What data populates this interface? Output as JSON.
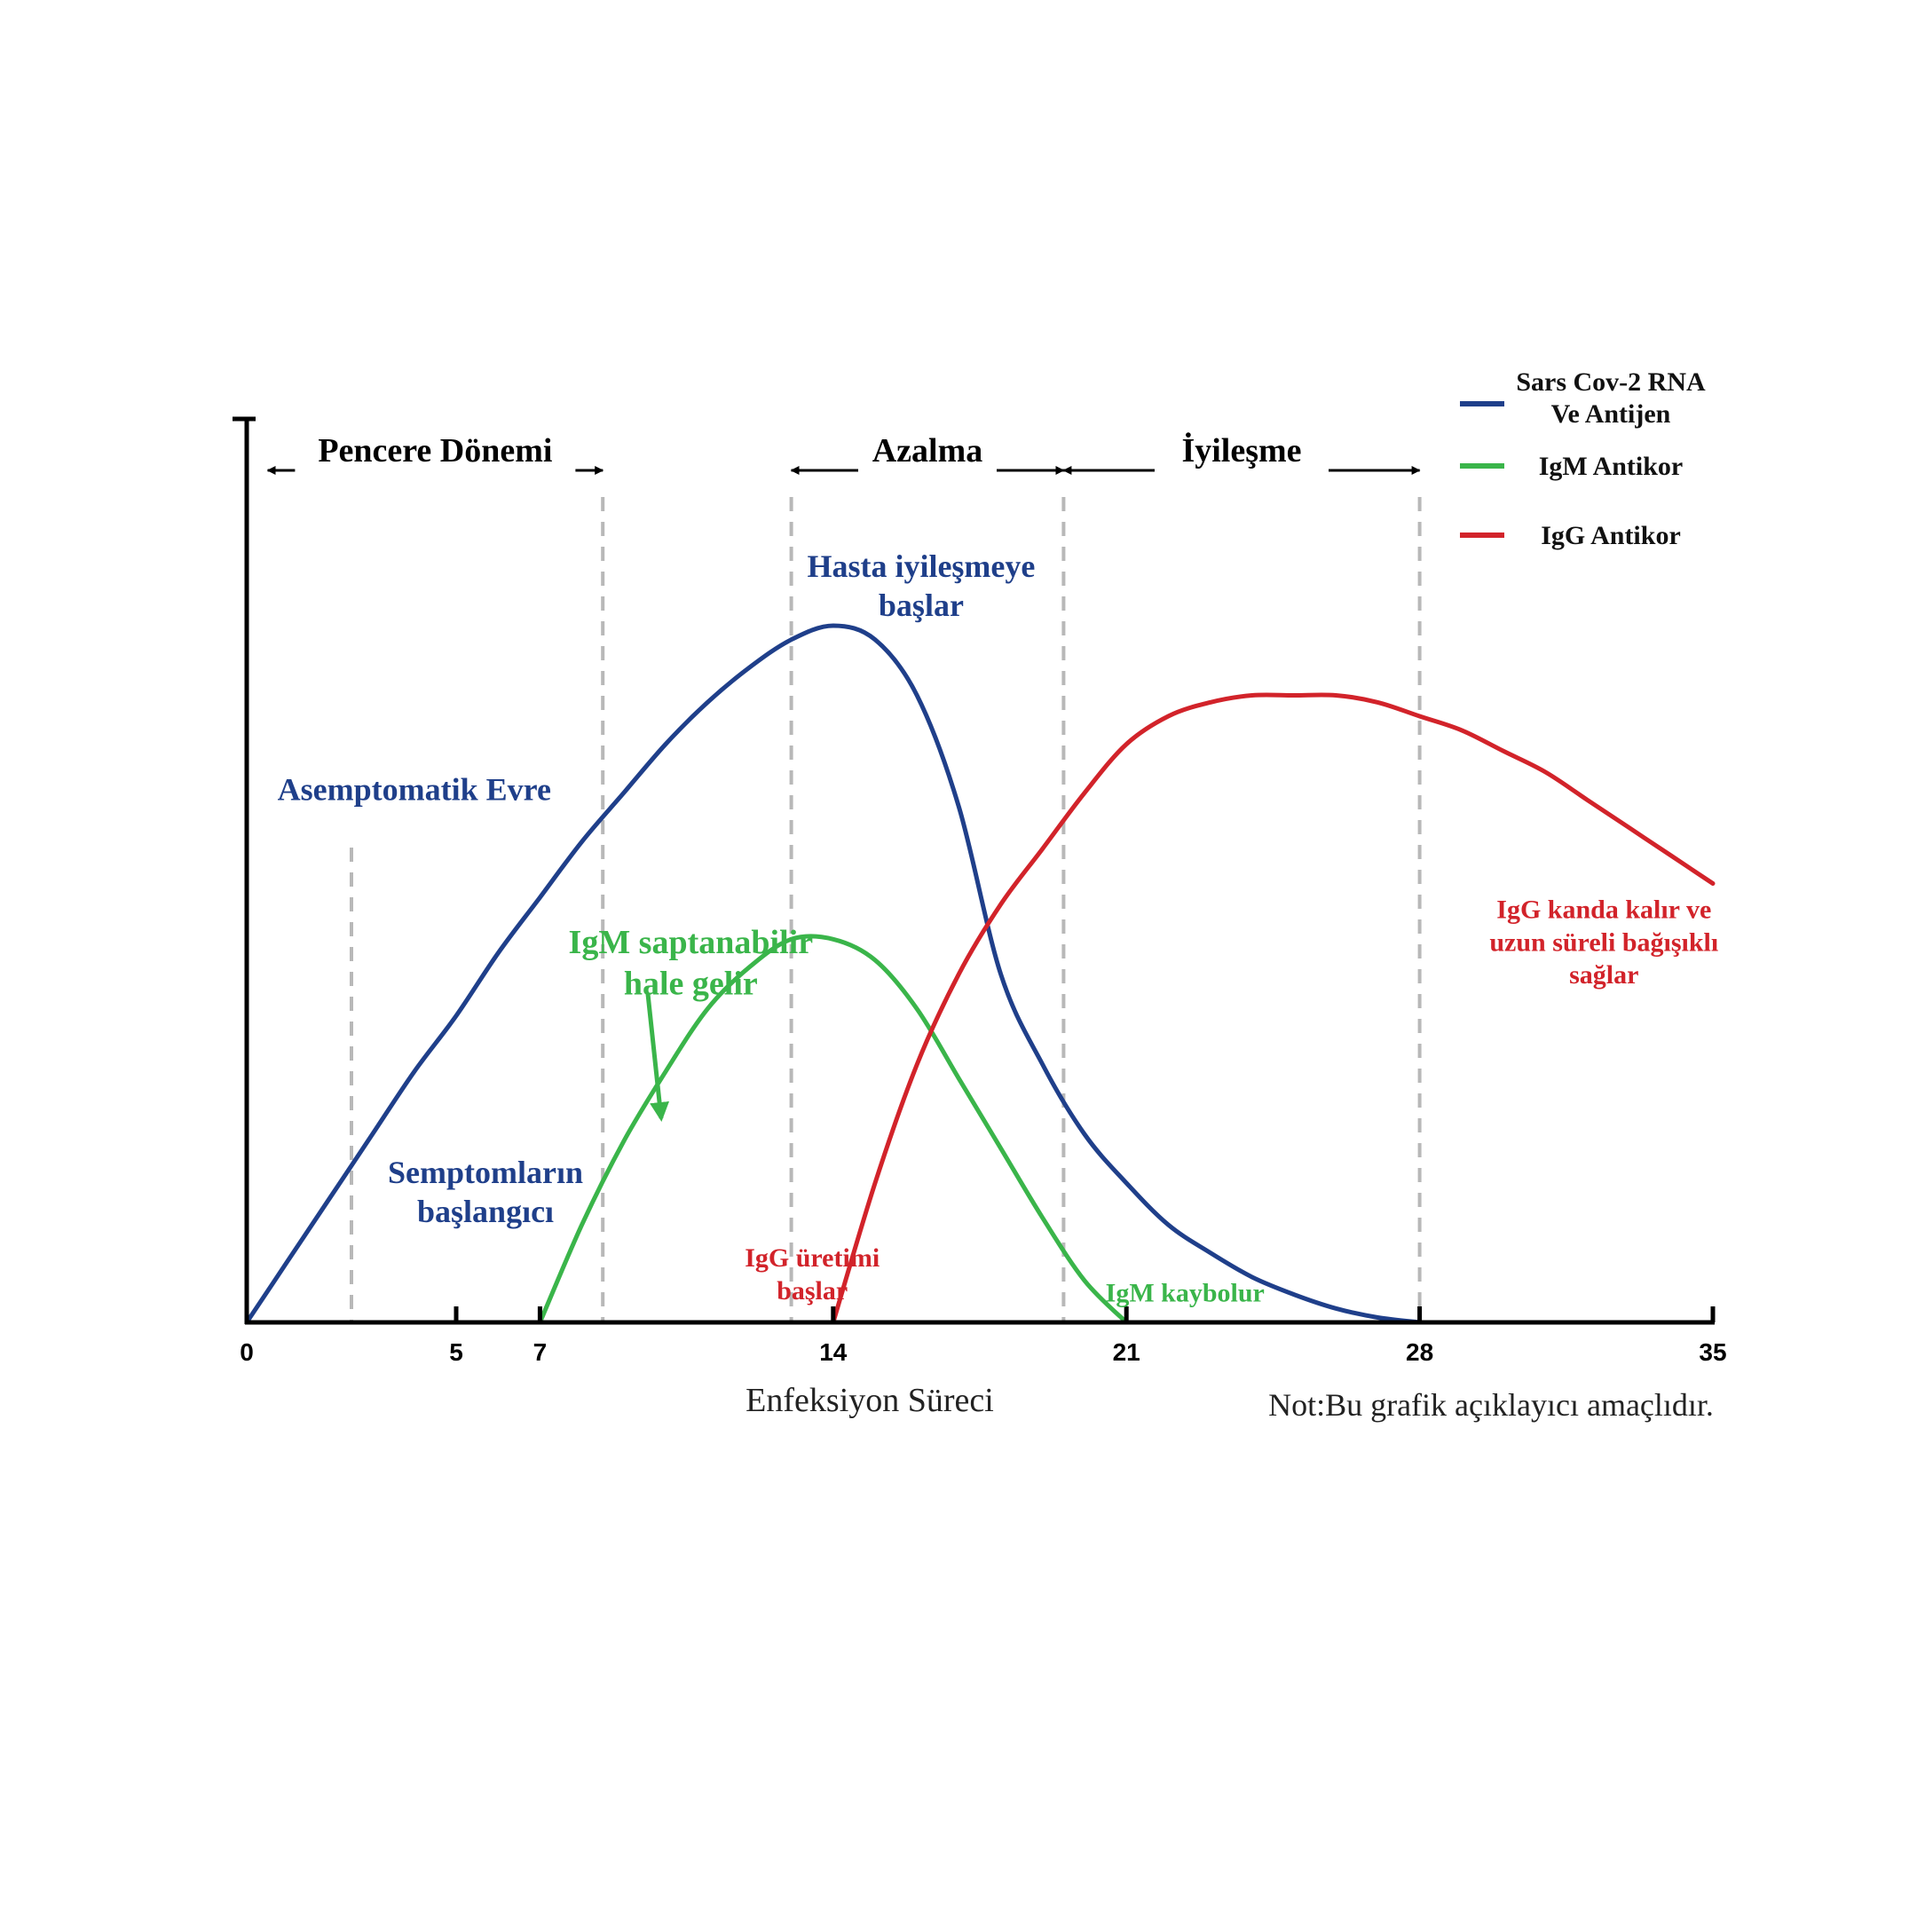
{
  "chart_data": {
    "type": "line",
    "xlabel": "Enfeksiyon Süreci",
    "note": "Not:Bu grafik açıklayıcı amaçlıdır.",
    "x_ticks": [
      0,
      5,
      7,
      14,
      21,
      28,
      35
    ],
    "xlim": [
      0,
      35
    ],
    "ylim": [
      0,
      1
    ],
    "legend_position": "top-right",
    "colors": {
      "blue": "#1f3f8a",
      "green": "#3ab54a",
      "red": "#d2232a",
      "phase_line": "#b8b8b8"
    },
    "series": [
      {
        "name": "Sars Cov-2 RNA Ve Antijen",
        "legend_lines": [
          "Sars Cov-2 RNA",
          "Ve Antijen"
        ],
        "color": "#1f3f8a",
        "points": [
          [
            0,
            0
          ],
          [
            1,
            0.09
          ],
          [
            2,
            0.18
          ],
          [
            3,
            0.27
          ],
          [
            4,
            0.36
          ],
          [
            5,
            0.44
          ],
          [
            6,
            0.53
          ],
          [
            7,
            0.61
          ],
          [
            8,
            0.69
          ],
          [
            9,
            0.76
          ],
          [
            10,
            0.83
          ],
          [
            11,
            0.89
          ],
          [
            12,
            0.94
          ],
          [
            13,
            0.98
          ],
          [
            14,
            1.0
          ],
          [
            15,
            0.98
          ],
          [
            16,
            0.9
          ],
          [
            17,
            0.74
          ],
          [
            18,
            0.5
          ],
          [
            19,
            0.37
          ],
          [
            20,
            0.27
          ],
          [
            21,
            0.2
          ],
          [
            22,
            0.14
          ],
          [
            23,
            0.1
          ],
          [
            24,
            0.065
          ],
          [
            25,
            0.04
          ],
          [
            26,
            0.02
          ],
          [
            27,
            0.007
          ],
          [
            28,
            0.0
          ]
        ]
      },
      {
        "name": "IgM Antikor",
        "legend_lines": [
          "IgM Antikor"
        ],
        "color": "#3ab54a",
        "points": [
          [
            7,
            0
          ],
          [
            8,
            0.14
          ],
          [
            9,
            0.26
          ],
          [
            10,
            0.36
          ],
          [
            11,
            0.45
          ],
          [
            12,
            0.51
          ],
          [
            13,
            0.55
          ],
          [
            14,
            0.55
          ],
          [
            15,
            0.52
          ],
          [
            16,
            0.45
          ],
          [
            17,
            0.35
          ],
          [
            18,
            0.25
          ],
          [
            19,
            0.15
          ],
          [
            20,
            0.06
          ],
          [
            21,
            0.0
          ]
        ]
      },
      {
        "name": "IgG Antikor",
        "legend_lines": [
          "IgG Antikor"
        ],
        "color": "#d2232a",
        "points": [
          [
            14,
            0
          ],
          [
            15,
            0.2
          ],
          [
            16,
            0.37
          ],
          [
            17,
            0.5
          ],
          [
            18,
            0.6
          ],
          [
            19,
            0.68
          ],
          [
            20,
            0.76
          ],
          [
            21,
            0.83
          ],
          [
            22,
            0.87
          ],
          [
            23,
            0.89
          ],
          [
            24,
            0.9
          ],
          [
            25,
            0.9
          ],
          [
            26,
            0.9
          ],
          [
            27,
            0.89
          ],
          [
            28,
            0.87
          ],
          [
            29,
            0.85
          ],
          [
            30,
            0.82
          ],
          [
            31,
            0.79
          ],
          [
            32,
            0.75
          ],
          [
            33,
            0.71
          ],
          [
            34,
            0.67
          ],
          [
            35,
            0.63
          ]
        ]
      }
    ],
    "phase_lines_x": [
      2.5,
      4.1,
      8.5,
      13.0,
      19.5,
      28.0
    ],
    "phases": [
      {
        "label": "Pencere Dönemi",
        "from": 0.5,
        "to": 8.5
      },
      {
        "label": "Azalma",
        "from": 13.0,
        "to": 19.5
      },
      {
        "label": "İyileşme",
        "from": 19.5,
        "to": 28.0
      }
    ],
    "annotations": [
      {
        "id": "asemptomatik",
        "lines": [
          "Asemptomatik Evre"
        ],
        "color": "#1f3f8a",
        "x": 4.0,
        "y": 0.75
      },
      {
        "id": "semptom",
        "lines": [
          "Semptomların",
          "başlangıcı"
        ],
        "color": "#1f3f8a",
        "x": 5.7,
        "y": 0.2
      },
      {
        "id": "hasta",
        "lines": [
          "Hasta iyileşmeye",
          "başlar"
        ],
        "color": "#1f3f8a",
        "x": 16.1,
        "y": 1.07
      },
      {
        "id": "igm-detect",
        "lines": [
          "IgM saptanabilir",
          "hale gelir"
        ],
        "color": "#3ab54a",
        "x": 10.6,
        "y": 0.53
      },
      {
        "id": "igg-start",
        "lines": [
          "IgG üretimi",
          "başlar"
        ],
        "color": "#d2232a",
        "x": 13.5,
        "y": 0.08
      },
      {
        "id": "igm-lost",
        "lines": [
          "IgM kaybolur"
        ],
        "color": "#3ab54a",
        "x": 22.4,
        "y": 0.03
      },
      {
        "id": "igg-remain",
        "lines": [
          "IgG kanda kalır ve",
          "uzun süreli bağışıklı",
          "sağlar"
        ],
        "color": "#d2232a",
        "x": 32.4,
        "y": 0.58
      }
    ]
  }
}
